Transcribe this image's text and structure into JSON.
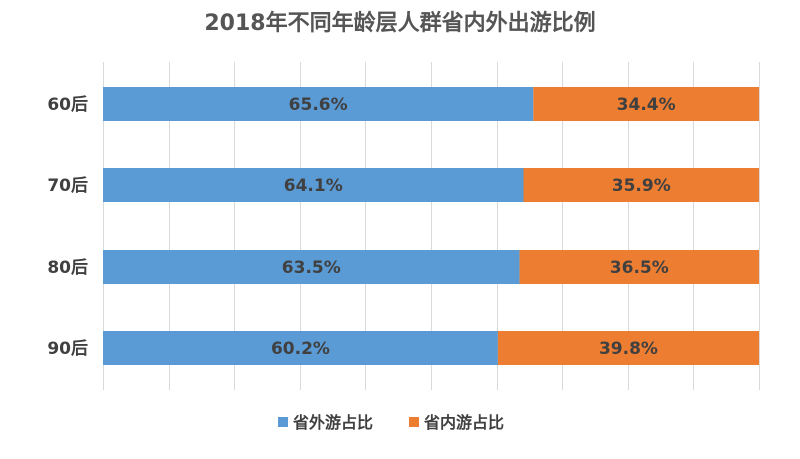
{
  "chart_data": {
    "type": "bar",
    "orientation": "horizontal",
    "stacked": "percent",
    "title": "2018年不同年龄层人群省内外出游比例",
    "categories": [
      "60后",
      "70后",
      "80后",
      "90后"
    ],
    "series": [
      {
        "name": "省外游占比",
        "color": "#5b9bd5",
        "values": [
          65.6,
          64.1,
          63.5,
          60.2
        ],
        "labels": [
          "65.6%",
          "64.1%",
          "63.5%",
          "60.2%"
        ]
      },
      {
        "name": "省内游占比",
        "color": "#ed7d31",
        "values": [
          34.4,
          35.9,
          36.5,
          39.8
        ],
        "labels": [
          "34.4%",
          "35.9%",
          "36.5%",
          "39.8%"
        ]
      }
    ],
    "xlim": [
      0,
      100
    ],
    "grid": true,
    "legend": "bottom"
  }
}
